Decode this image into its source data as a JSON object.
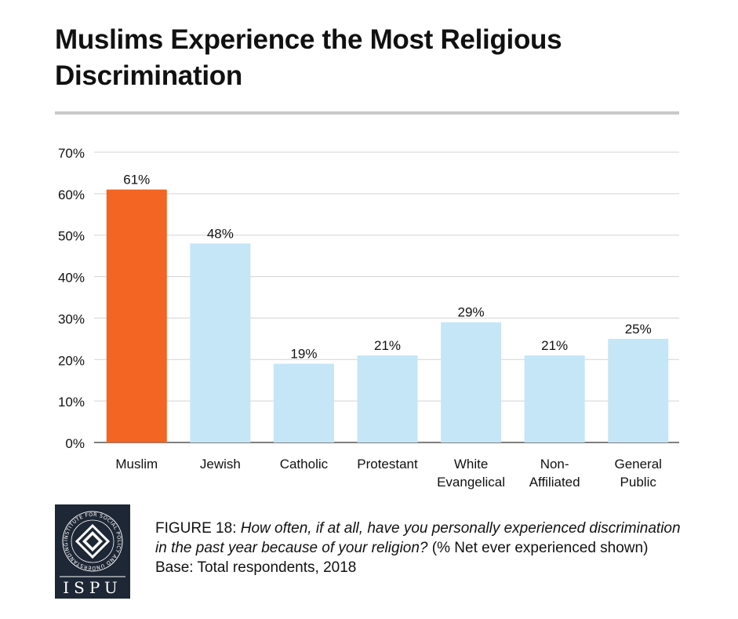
{
  "title": "Muslims Experience the Most Religious Discrimination",
  "chart_data": {
    "type": "bar",
    "categories": [
      "Muslim",
      "Jewish",
      "Catholic",
      "Protestant",
      "White Evangelical",
      "Non-Affiliated",
      "General Public"
    ],
    "category_lines": [
      [
        "Muslim"
      ],
      [
        "Jewish"
      ],
      [
        "Catholic"
      ],
      [
        "Protestant"
      ],
      [
        "White",
        "Evangelical"
      ],
      [
        "Non-",
        "Affiliated"
      ],
      [
        "General",
        "Public"
      ]
    ],
    "values": [
      61,
      48,
      19,
      21,
      29,
      21,
      25
    ],
    "value_labels": [
      "61%",
      "48%",
      "19%",
      "21%",
      "29%",
      "21%",
      "25%"
    ],
    "highlight_index": 0,
    "colors": {
      "highlight": "#f26522",
      "default": "#c5e6f7",
      "grid": "#d3d3d3",
      "axis": "#555555"
    },
    "ylim": [
      0,
      70
    ],
    "yticks": [
      0,
      10,
      20,
      30,
      40,
      50,
      60,
      70
    ],
    "ytick_labels": [
      "0%",
      "10%",
      "20%",
      "30%",
      "40%",
      "50%",
      "60%",
      "70%"
    ],
    "xlabel": "",
    "ylabel": "",
    "grid": true
  },
  "caption": {
    "figure_label": "FIGURE 18",
    "question": "How often, if at all, have you personally experienced discrimination in the past year because of your religion?",
    "note": "(% Net ever experienced shown) Base: Total respondents, 2018"
  },
  "logo": {
    "text": "ISPU",
    "ring_text": "INSTITUTE FOR SOCIAL POLICY AND UNDERSTANDING"
  }
}
